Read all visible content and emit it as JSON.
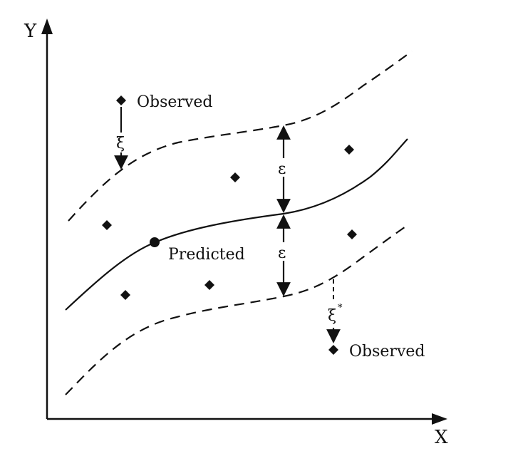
{
  "axes": {
    "y_label": "Y",
    "x_label": "X"
  },
  "labels": {
    "observed_top": "Observed",
    "observed_bottom": "Observed",
    "predicted": "Predicted",
    "xi": "ξ",
    "xi_star": "ξ",
    "xi_star_sup": "*",
    "epsilon_upper": "ε",
    "epsilon_lower": "ε"
  },
  "colors": {
    "ink": "#111111",
    "background": "#ffffff"
  }
}
